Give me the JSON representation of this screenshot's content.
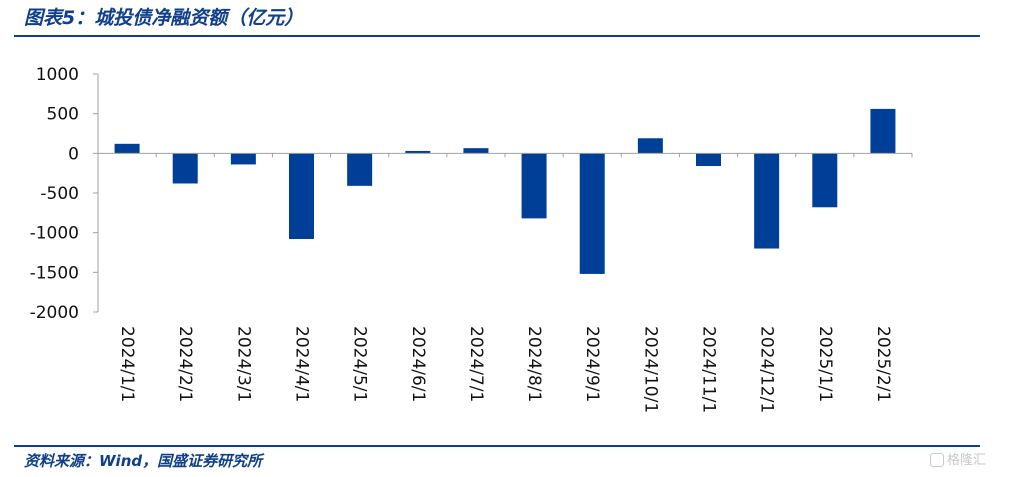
{
  "figure": {
    "title": "图表5：城投债净融资额（亿元）",
    "source": "资料来源：Wind，国盛证券研究所",
    "watermark": "格隆汇"
  },
  "colors": {
    "bar": "#003f98",
    "title": "#0f3f8c",
    "axis": "#a0a0a0"
  },
  "chart_data": {
    "type": "bar",
    "title": "",
    "xlabel": "",
    "ylabel": "",
    "ylim": [
      -2000,
      1000
    ],
    "yticks": [
      1000,
      500,
      0,
      -500,
      -1000,
      -1500,
      -2000
    ],
    "grid": false,
    "legend": "none",
    "categories": [
      "2024/1/1",
      "2024/2/1",
      "2024/3/1",
      "2024/4/1",
      "2024/5/1",
      "2024/6/1",
      "2024/7/1",
      "2024/8/1",
      "2024/9/1",
      "2024/10/1",
      "2024/11/1",
      "2024/12/1",
      "2025/1/1",
      "2025/2/1"
    ],
    "values": [
      120,
      -380,
      -140,
      -1080,
      -410,
      30,
      65,
      -820,
      -1520,
      190,
      -160,
      -1200,
      -680,
      560
    ]
  }
}
